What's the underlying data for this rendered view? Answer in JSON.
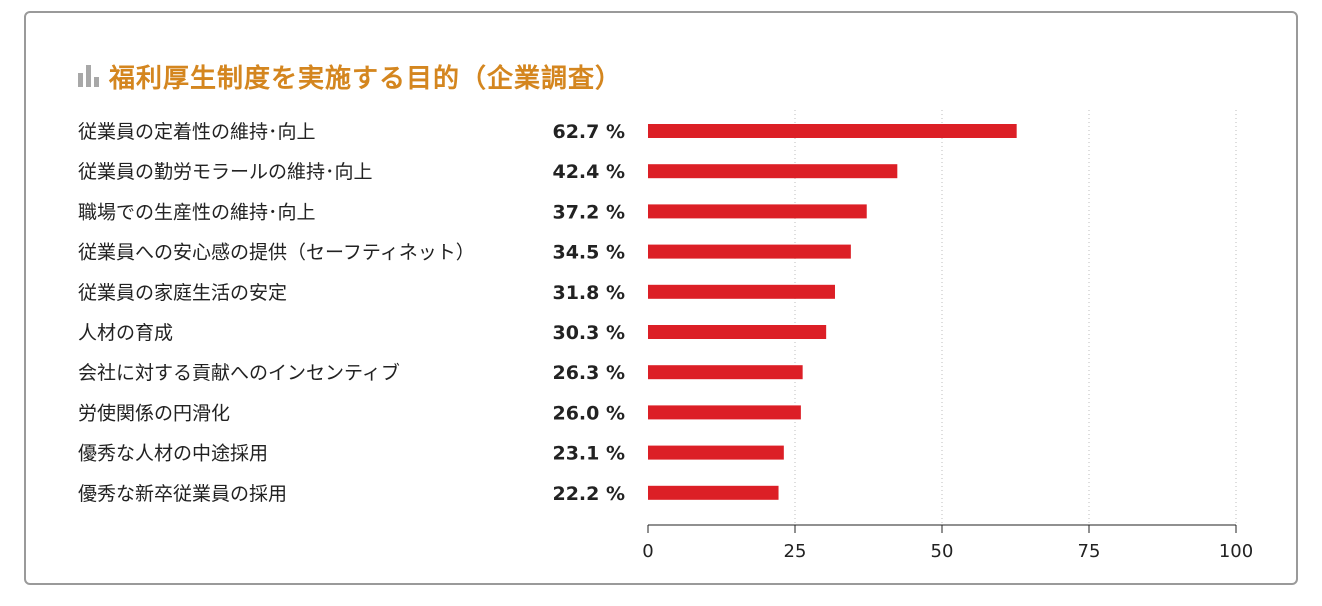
{
  "chart_data": {
    "type": "bar",
    "orientation": "horizontal",
    "title": "福利厚生制度を実施する目的（企業調査）",
    "categories": [
      "従業員の定着性の維持･向上",
      "従業員の勤労モラールの維持･向上",
      "職場での生産性の維持･向上",
      "従業員への安心感の提供（セーフティネット）",
      "従業員の家庭生活の安定",
      "人材の育成",
      "会社に対する貢献へのインセンティブ",
      "労使関係の円滑化",
      "優秀な人材の中途採用",
      "優秀な新卒従業員の採用"
    ],
    "values": [
      62.7,
      42.4,
      37.2,
      34.5,
      31.8,
      30.3,
      26.3,
      26.0,
      23.1,
      22.2
    ],
    "value_labels": [
      "62.7 %",
      "42.4 %",
      "37.2 %",
      "34.5 %",
      "31.8 %",
      "30.3 %",
      "26.3 %",
      "26.0 %",
      "23.1 %",
      "22.2 %"
    ],
    "xlim": [
      0,
      100
    ],
    "xticks": [
      "0",
      "25",
      "50",
      "75",
      "100"
    ],
    "xlabel": "",
    "ylabel": "",
    "grid": "vertical dotted",
    "bar_color": "#dc1f26",
    "title_color": "#d4861f",
    "title_icon": "bar-chart-icon"
  }
}
